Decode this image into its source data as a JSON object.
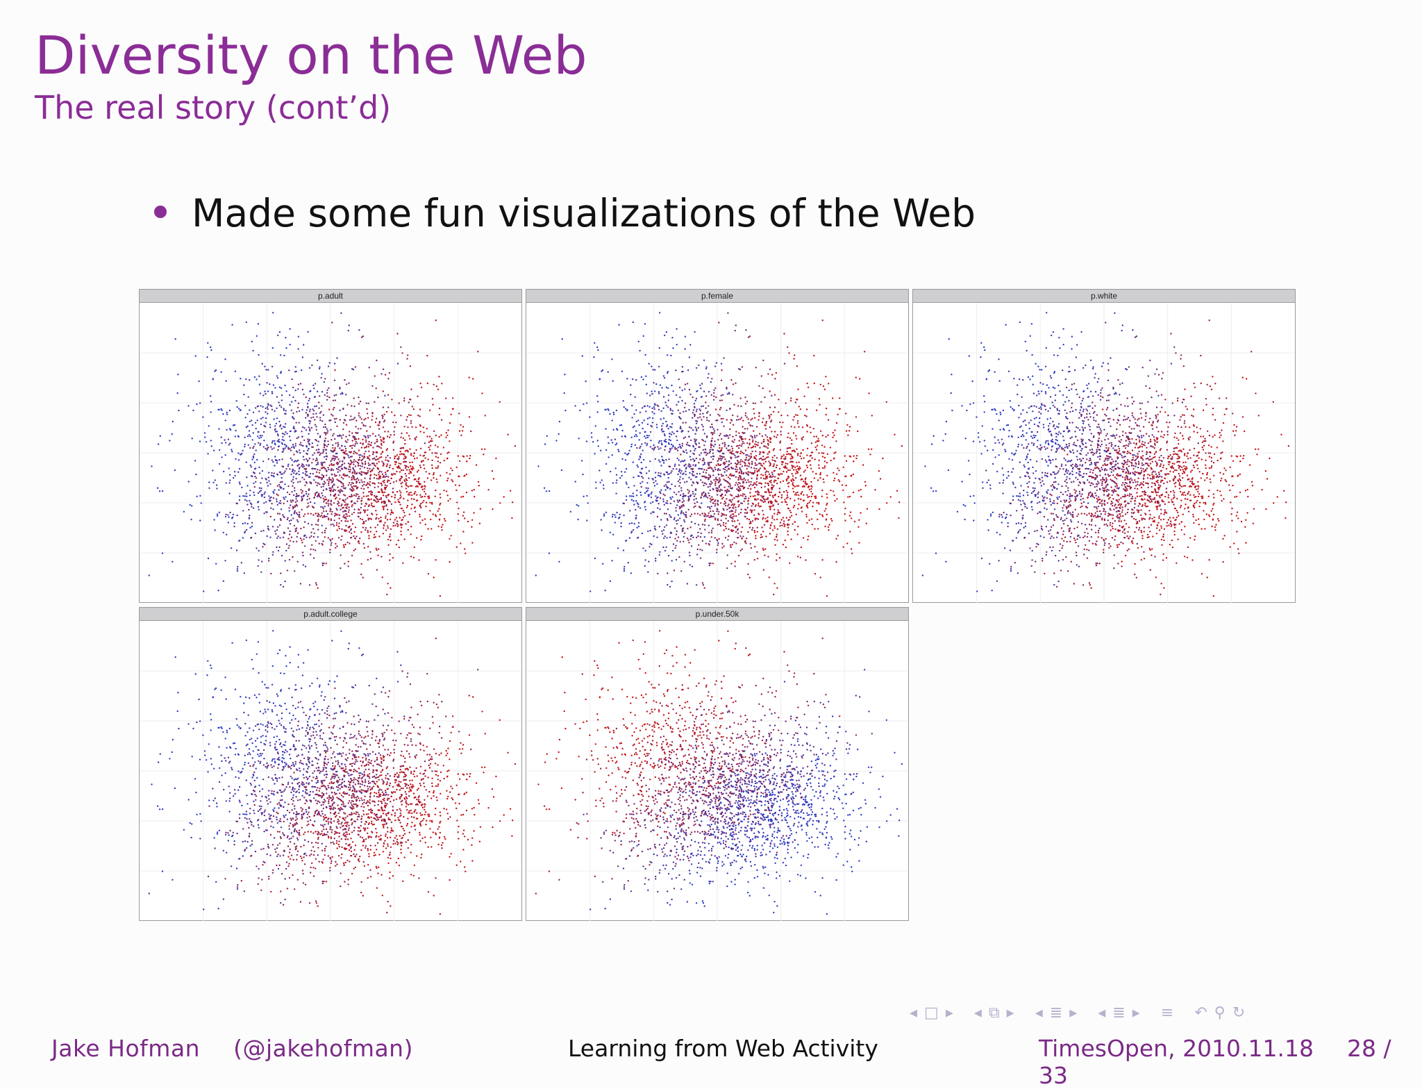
{
  "slide": {
    "title": "Diversity on the Web",
    "subtitle": "The real story (cont’d)",
    "bullet": "Made some fun visualizations of the Web"
  },
  "panels": [
    {
      "label": "p.adult"
    },
    {
      "label": "p.female"
    },
    {
      "label": "p.white"
    },
    {
      "label": "p.adult.college"
    },
    {
      "label": "p.under.50k"
    }
  ],
  "colors": {
    "accent": "#8b2d96",
    "low": "#2b3cc4",
    "high": "#c41414"
  },
  "footer": {
    "author": "Jake Hofman",
    "handle": "(@jakehofman)",
    "talk": "Learning from Web Activity",
    "venue": "TimesOpen, 2010.11.18",
    "page": "28 / 33"
  },
  "nav_icons": [
    "arrow-left-icon",
    "frame-icon",
    "arrow-right-icon",
    "arrow-left-icon",
    "subsection-icon",
    "arrow-right-icon",
    "arrow-left-icon",
    "section-icon",
    "arrow-right-icon",
    "arrow-left-icon",
    "list-icon",
    "arrow-right-icon",
    "align-icon",
    "back-icon",
    "search-icon",
    "refresh-icon"
  ]
}
